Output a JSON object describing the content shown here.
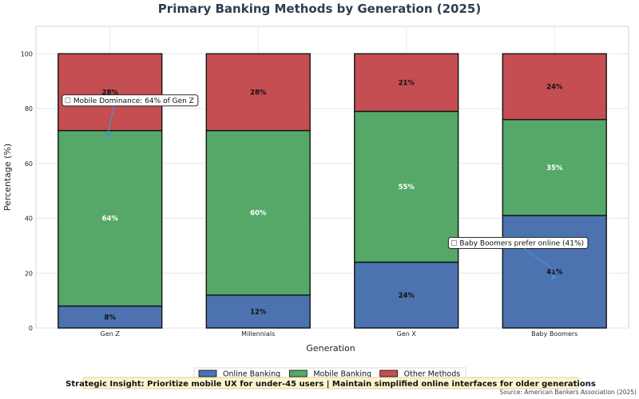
{
  "chart_data": {
    "type": "bar",
    "stacked": true,
    "title": "Primary Banking Methods by Generation (2025)",
    "xlabel": "Generation",
    "ylabel": "Percentage (%)",
    "ylim": [
      0,
      110
    ],
    "yticks": [
      0,
      20,
      40,
      60,
      80,
      100
    ],
    "grid": true,
    "categories": [
      "Gen Z",
      "Millennials",
      "Gen X",
      "Baby Boomers"
    ],
    "series": [
      {
        "name": "Online Banking",
        "color": "#4c72b0",
        "label_color": "#111111",
        "values": [
          8,
          12,
          24,
          41
        ]
      },
      {
        "name": "Mobile Banking",
        "color": "#55a868",
        "label_color": "#ffffff",
        "values": [
          64,
          60,
          55,
          35
        ]
      },
      {
        "name": "Other Methods",
        "color": "#c44e52",
        "label_color": "#111111",
        "values": [
          28,
          28,
          21,
          24
        ]
      }
    ],
    "legend_position": "bottom-center",
    "annotations": [
      {
        "text": "Mobile Dominance: 64% of Gen Z",
        "category": "Gen Z",
        "target_value": 72,
        "text_value": 83
      },
      {
        "text": "Baby Boomers prefer online (41%)",
        "category": "Baby Boomers",
        "target_value": 20.5,
        "text_value": 31
      }
    ]
  },
  "footer": {
    "insight": "Strategic Insight: Prioritize mobile UX for under-45 users | Maintain simplified online interfaces for older generations",
    "source": "Source: American Bankers Association (2025)"
  }
}
